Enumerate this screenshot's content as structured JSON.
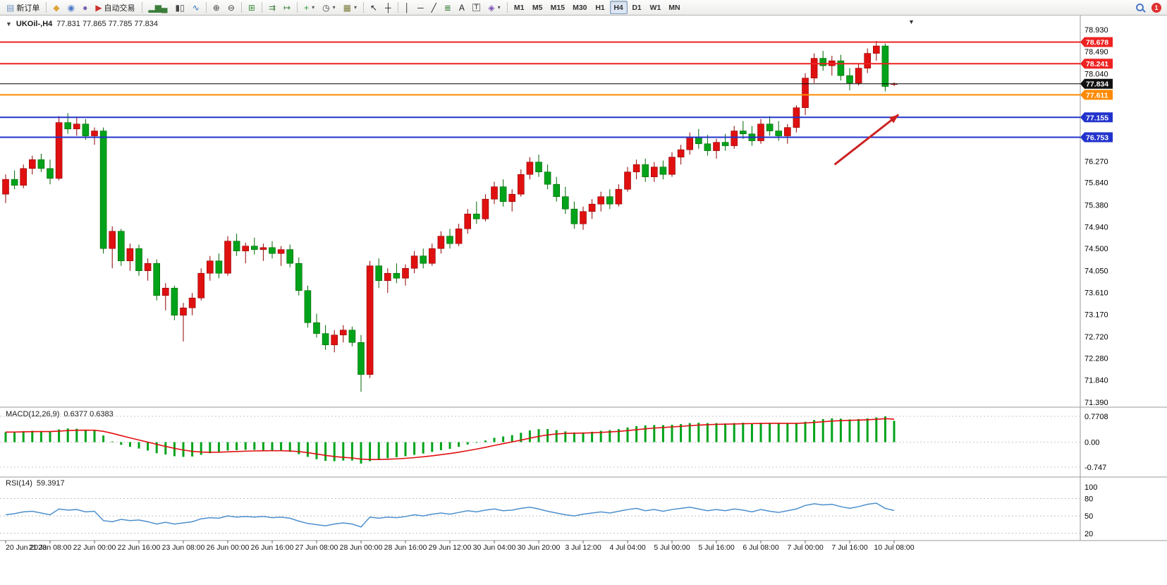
{
  "icons": {
    "caret_down": "▼",
    "caret_small": "▾"
  },
  "toolbar": {
    "notification_count": "1",
    "active_timeframe": "H4",
    "timeframes": [
      "M1",
      "M5",
      "M15",
      "M30",
      "H1",
      "H4",
      "D1",
      "W1",
      "MN"
    ],
    "buttons": [
      {
        "name": "new-order-button",
        "icon": "new-order-icon",
        "glyph": "▤",
        "color": "#6f8fbf",
        "label": "新订单"
      },
      {
        "sep": true
      },
      {
        "name": "market-watch-button",
        "icon": "market-watch-icon",
        "glyph": "◆",
        "color": "#e0a33b"
      },
      {
        "name": "navigator-button",
        "icon": "navigator-icon",
        "glyph": "◉",
        "color": "#4d79c9"
      },
      {
        "name": "terminal-button",
        "icon": "terminal-icon",
        "glyph": "●",
        "color": "#7a5fb0"
      },
      {
        "name": "autotrading-button",
        "icon": "autotrading-icon",
        "glyph": "▶",
        "color": "#cc3333",
        "label": "自动交易"
      },
      {
        "sep": true
      },
      {
        "name": "bar-chart-button",
        "icon": "bar-chart-icon",
        "glyph": "▂▆▄",
        "color": "#3a7d3a"
      },
      {
        "name": "candlestick-chart-button",
        "icon": "candlestick-chart-icon",
        "glyph": "▮▯",
        "color": "#444444"
      },
      {
        "name": "line-chart-button",
        "icon": "line-chart-icon",
        "glyph": "∿",
        "color": "#2a6fbd"
      },
      {
        "sep": true
      },
      {
        "name": "zoom-in-button",
        "icon": "zoom-in-icon",
        "glyph": "⊕",
        "color": "#444444"
      },
      {
        "name": "zoom-out-button",
        "icon": "zoom-out-icon",
        "glyph": "⊖",
        "color": "#444444"
      },
      {
        "sep": true
      },
      {
        "name": "tile-windows-button",
        "icon": "tile-windows-icon",
        "glyph": "⊞",
        "color": "#3a8d3a"
      },
      {
        "sep": true
      },
      {
        "name": "auto-scroll-button",
        "icon": "auto-scroll-icon",
        "glyph": "⇉",
        "color": "#3a7d3a"
      },
      {
        "name": "chart-shift-button",
        "icon": "chart-shift-icon",
        "glyph": "↦",
        "color": "#3a7d3a"
      },
      {
        "sep": true
      },
      {
        "name": "indicators-button",
        "icon": "indicators-icon",
        "glyph": "+",
        "color": "#2a9d2a",
        "dropdown": true
      },
      {
        "name": "periods-button",
        "icon": "periods-icon",
        "glyph": "◷",
        "color": "#444444",
        "dropdown": true
      },
      {
        "name": "templates-button",
        "icon": "templates-icon",
        "glyph": "▦",
        "color": "#7a7a3a",
        "dropdown": true
      },
      {
        "sep": true
      },
      {
        "name": "cursor-button",
        "icon": "cursor-icon",
        "glyph": "↖",
        "color": "#222222"
      },
      {
        "name": "crosshair-button",
        "icon": "crosshair-icon",
        "glyph": "┼",
        "color": "#222222"
      },
      {
        "sep": true
      },
      {
        "name": "vertical-line-button",
        "icon": "vertical-line-icon",
        "glyph": "│",
        "color": "#222222"
      },
      {
        "name": "horizontal-line-button",
        "icon": "horizontal-line-icon",
        "glyph": "─",
        "color": "#222222"
      },
      {
        "name": "trendline-button",
        "icon": "trendline-icon",
        "glyph": "╱",
        "color": "#222222"
      },
      {
        "name": "fibonacci-button",
        "icon": "fibonacci-icon",
        "glyph": "≣",
        "color": "#3a7d3a"
      },
      {
        "name": "text-button",
        "icon": "text-icon",
        "glyph": "A",
        "color": "#222222"
      },
      {
        "name": "label-button",
        "icon": "label-icon",
        "glyph": "T",
        "color": "#222222",
        "boxed": true
      },
      {
        "name": "arrows-button",
        "icon": "arrows-icon",
        "glyph": "◈",
        "color": "#7a4fb0",
        "dropdown": true
      },
      {
        "sep": true
      }
    ]
  },
  "chart": {
    "title_symbol": "UKOil-,H4",
    "title_ohlc": "77.831 77.865 77.785 77.834"
  },
  "indicators": {
    "macd": {
      "label": "MACD(12,26,9)",
      "values": "0.6377 0.6383",
      "scale_labels": [
        "0.7708",
        "0.00",
        "-0.747"
      ]
    },
    "rsi": {
      "label": "RSI(14)",
      "value": "59.3917",
      "scale_labels": [
        "100",
        "80",
        "50",
        "20"
      ]
    }
  },
  "chart_data": {
    "type": "candlestick",
    "symbol": "UKOil-",
    "timeframe": "H4",
    "colors": {
      "up": "#e01010",
      "down": "#00a31a",
      "up_border": "#8f0000",
      "down_border": "#006600",
      "macd_hist": "#00a31a",
      "macd_signal": "#e01010",
      "rsi_line": "#4d8fcc"
    },
    "price_axis_labels": [
      "78.930",
      "78.490",
      "78.040",
      "76.270",
      "75.840",
      "75.380",
      "74.940",
      "74.500",
      "74.050",
      "73.610",
      "73.170",
      "72.720",
      "72.280",
      "71.840",
      "71.390"
    ],
    "price_tags": [
      {
        "value": "78.678",
        "color": "#ee2222"
      },
      {
        "value": "78.241",
        "color": "#ee2222"
      },
      {
        "value": "77.834",
        "color": "#111111"
      },
      {
        "value": "77.611",
        "color": "#ff8a00"
      },
      {
        "value": "77.155",
        "color": "#2233cc"
      },
      {
        "value": "76.753",
        "color": "#2233cc"
      }
    ],
    "horizontal_lines": [
      {
        "name": "resistance-line-1",
        "price": 78.678,
        "color": "#ee2222",
        "width": 2
      },
      {
        "name": "resistance-line-2",
        "price": 78.241,
        "color": "#ee2222",
        "width": 2
      },
      {
        "name": "bid-price-line",
        "price": 77.834,
        "color": "#000000",
        "width": 1
      },
      {
        "name": "pivot-line",
        "price": 77.611,
        "color": "#ff8a00",
        "width": 2
      },
      {
        "name": "support-line-1",
        "price": 77.155,
        "color": "#2233cc",
        "width": 2
      },
      {
        "name": "support-line-2",
        "price": 76.753,
        "color": "#2233cc",
        "width": 2
      }
    ],
    "arrow": {
      "from_bar": 93.3,
      "from_price": 76.2,
      "to_bar": 100.5,
      "to_price": 77.21,
      "color": "#cc2222"
    },
    "time_labels": [
      "20 Jun 2023",
      "21 Jun 08:00",
      "22 Jun 00:00",
      "22 Jun 16:00",
      "23 Jun 08:00",
      "26 Jun 00:00",
      "26 Jun 16:00",
      "27 Jun 08:00",
      "28 Jun 00:00",
      "28 Jun 16:00",
      "29 Jun 12:00",
      "30 Jun 04:00",
      "30 Jun 20:00",
      "3 Jul 12:00",
      "4 Jul 04:00",
      "5 Jul 00:00",
      "5 Jul 16:00",
      "6 Jul 08:00",
      "7 Jul 00:00",
      "7 Jul 16:00",
      "10 Jul 08:00"
    ],
    "label_every_n_bars": 5,
    "price_scale": {
      "top_value": 78.93,
      "bottom_value": 71.39
    },
    "macd_scale": {
      "max": 0.7708,
      "min": -0.747
    },
    "rsi_scale": {
      "max": 100,
      "min": 10
    },
    "rsi_levels": [
      80,
      50,
      20
    ],
    "candles_ohlc": [
      [
        75.6,
        76.0,
        75.42,
        75.9
      ],
      [
        75.9,
        76.08,
        75.7,
        75.78
      ],
      [
        75.78,
        76.2,
        75.72,
        76.12
      ],
      [
        76.12,
        76.38,
        76.0,
        76.3
      ],
      [
        76.3,
        76.42,
        76.05,
        76.12
      ],
      [
        76.12,
        76.3,
        75.8,
        75.92
      ],
      [
        75.92,
        77.18,
        75.88,
        77.05
      ],
      [
        77.05,
        77.24,
        76.82,
        76.92
      ],
      [
        76.92,
        77.15,
        76.78,
        77.02
      ],
      [
        77.02,
        77.12,
        76.7,
        76.78
      ],
      [
        76.78,
        76.95,
        76.6,
        76.88
      ],
      [
        76.88,
        76.95,
        74.4,
        74.5
      ],
      [
        74.5,
        74.95,
        74.1,
        74.85
      ],
      [
        74.85,
        74.9,
        74.15,
        74.25
      ],
      [
        74.25,
        74.6,
        74.05,
        74.5
      ],
      [
        74.5,
        74.58,
        73.95,
        74.05
      ],
      [
        74.05,
        74.3,
        73.85,
        74.2
      ],
      [
        74.2,
        74.28,
        73.45,
        73.55
      ],
      [
        73.55,
        73.8,
        73.25,
        73.7
      ],
      [
        73.7,
        73.75,
        73.05,
        73.15
      ],
      [
        73.15,
        73.4,
        72.62,
        73.3
      ],
      [
        73.3,
        73.6,
        73.15,
        73.5
      ],
      [
        73.5,
        74.1,
        73.45,
        74.0
      ],
      [
        74.0,
        74.35,
        73.85,
        74.25
      ],
      [
        74.25,
        74.4,
        73.9,
        74.0
      ],
      [
        74.0,
        74.75,
        73.95,
        74.65
      ],
      [
        74.65,
        74.8,
        74.35,
        74.45
      ],
      [
        74.45,
        74.62,
        74.2,
        74.55
      ],
      [
        74.55,
        74.72,
        74.38,
        74.48
      ],
      [
        74.48,
        74.6,
        74.25,
        74.52
      ],
      [
        74.52,
        74.65,
        74.3,
        74.4
      ],
      [
        74.4,
        74.55,
        74.15,
        74.48
      ],
      [
        74.48,
        74.58,
        74.12,
        74.2
      ],
      [
        74.2,
        74.32,
        73.55,
        73.65
      ],
      [
        73.65,
        73.75,
        72.9,
        73.0
      ],
      [
        73.0,
        73.18,
        72.7,
        72.78
      ],
      [
        72.78,
        72.95,
        72.45,
        72.55
      ],
      [
        72.55,
        72.85,
        72.4,
        72.75
      ],
      [
        72.75,
        72.95,
        72.6,
        72.85
      ],
      [
        72.85,
        72.92,
        72.52,
        72.6
      ],
      [
        72.6,
        72.75,
        71.6,
        71.95
      ],
      [
        71.95,
        74.25,
        71.88,
        74.15
      ],
      [
        74.15,
        74.3,
        73.7,
        73.85
      ],
      [
        73.85,
        74.1,
        73.6,
        74.0
      ],
      [
        74.0,
        74.2,
        73.8,
        73.9
      ],
      [
        73.9,
        74.18,
        73.75,
        74.1
      ],
      [
        74.1,
        74.45,
        74.0,
        74.35
      ],
      [
        74.35,
        74.5,
        74.1,
        74.2
      ],
      [
        74.2,
        74.6,
        74.15,
        74.5
      ],
      [
        74.5,
        74.85,
        74.4,
        74.75
      ],
      [
        74.75,
        74.9,
        74.5,
        74.6
      ],
      [
        74.6,
        75.0,
        74.55,
        74.9
      ],
      [
        74.9,
        75.3,
        74.8,
        75.2
      ],
      [
        75.2,
        75.45,
        75.0,
        75.1
      ],
      [
        75.1,
        75.6,
        75.05,
        75.5
      ],
      [
        75.5,
        75.85,
        75.4,
        75.75
      ],
      [
        75.75,
        75.9,
        75.35,
        75.45
      ],
      [
        75.45,
        75.7,
        75.25,
        75.6
      ],
      [
        75.6,
        76.1,
        75.55,
        76.0
      ],
      [
        76.0,
        76.35,
        75.9,
        76.25
      ],
      [
        76.25,
        76.4,
        75.95,
        76.05
      ],
      [
        76.05,
        76.2,
        75.7,
        75.8
      ],
      [
        75.8,
        75.95,
        75.45,
        75.55
      ],
      [
        75.55,
        75.75,
        75.2,
        75.3
      ],
      [
        75.3,
        75.45,
        74.9,
        75.0
      ],
      [
        75.0,
        75.35,
        74.88,
        75.25
      ],
      [
        75.25,
        75.5,
        75.1,
        75.4
      ],
      [
        75.4,
        75.65,
        75.25,
        75.55
      ],
      [
        75.55,
        75.7,
        75.3,
        75.4
      ],
      [
        75.4,
        75.8,
        75.35,
        75.7
      ],
      [
        75.7,
        76.15,
        75.65,
        76.05
      ],
      [
        76.05,
        76.3,
        75.9,
        76.2
      ],
      [
        76.2,
        76.32,
        75.85,
        75.95
      ],
      [
        75.95,
        76.25,
        75.85,
        76.15
      ],
      [
        76.15,
        76.28,
        75.9,
        76.0
      ],
      [
        76.0,
        76.45,
        75.95,
        76.35
      ],
      [
        76.35,
        76.6,
        76.2,
        76.5
      ],
      [
        76.5,
        76.85,
        76.4,
        76.75
      ],
      [
        76.75,
        76.92,
        76.52,
        76.62
      ],
      [
        76.62,
        76.8,
        76.38,
        76.48
      ],
      [
        76.48,
        76.72,
        76.32,
        76.65
      ],
      [
        76.65,
        76.82,
        76.48,
        76.58
      ],
      [
        76.58,
        76.98,
        76.52,
        76.88
      ],
      [
        76.88,
        77.08,
        76.72,
        76.82
      ],
      [
        76.82,
        76.98,
        76.58,
        76.68
      ],
      [
        76.68,
        77.12,
        76.62,
        77.02
      ],
      [
        77.02,
        77.18,
        76.78,
        76.88
      ],
      [
        76.88,
        77.08,
        76.68,
        76.78
      ],
      [
        76.78,
        77.02,
        76.62,
        76.95
      ],
      [
        76.95,
        77.4,
        76.85,
        77.35
      ],
      [
        77.35,
        78.05,
        77.2,
        77.95
      ],
      [
        77.95,
        78.45,
        77.85,
        78.35
      ],
      [
        78.35,
        78.5,
        78.1,
        78.2
      ],
      [
        78.2,
        78.4,
        78.0,
        78.3
      ],
      [
        78.3,
        78.42,
        77.9,
        78.0
      ],
      [
        78.0,
        78.15,
        77.7,
        77.85
      ],
      [
        77.85,
        78.25,
        77.8,
        78.15
      ],
      [
        78.15,
        78.55,
        78.05,
        78.45
      ],
      [
        78.45,
        78.7,
        78.3,
        78.6
      ],
      [
        78.6,
        78.65,
        77.68,
        77.78
      ],
      [
        77.831,
        77.865,
        77.785,
        77.834
      ]
    ],
    "macd_histogram": [
      0.3,
      0.31,
      0.33,
      0.34,
      0.33,
      0.31,
      0.38,
      0.41,
      0.4,
      0.37,
      0.34,
      0.2,
      0.02,
      -0.08,
      -0.14,
      -0.19,
      -0.25,
      -0.33,
      -0.37,
      -0.42,
      -0.44,
      -0.43,
      -0.38,
      -0.33,
      -0.29,
      -0.25,
      -0.24,
      -0.23,
      -0.23,
      -0.24,
      -0.25,
      -0.26,
      -0.29,
      -0.36,
      -0.44,
      -0.51,
      -0.56,
      -0.57,
      -0.55,
      -0.55,
      -0.64,
      -0.57,
      -0.52,
      -0.48,
      -0.45,
      -0.42,
      -0.38,
      -0.34,
      -0.29,
      -0.24,
      -0.2,
      -0.14,
      -0.07,
      -0.02,
      0.05,
      0.13,
      0.17,
      0.21,
      0.28,
      0.35,
      0.39,
      0.39,
      0.36,
      0.32,
      0.29,
      0.29,
      0.31,
      0.34,
      0.36,
      0.39,
      0.44,
      0.48,
      0.5,
      0.51,
      0.51,
      0.52,
      0.54,
      0.57,
      0.58,
      0.57,
      0.57,
      0.56,
      0.57,
      0.58,
      0.57,
      0.58,
      0.58,
      0.56,
      0.55,
      0.57,
      0.61,
      0.66,
      0.69,
      0.71,
      0.7,
      0.68,
      0.69,
      0.71,
      0.74,
      0.77,
      0.6377
    ],
    "rsi_values": [
      52,
      54,
      57,
      58,
      55,
      52,
      62,
      60,
      61,
      57,
      58,
      42,
      40,
      44,
      42,
      43,
      40,
      36,
      39,
      36,
      38,
      40,
      45,
      47,
      46,
      50,
      48,
      49,
      48,
      49,
      47,
      48,
      46,
      41,
      37,
      35,
      33,
      36,
      38,
      36,
      31,
      48,
      46,
      48,
      47,
      49,
      52,
      50,
      53,
      55,
      53,
      56,
      59,
      57,
      60,
      62,
      59,
      60,
      63,
      65,
      62,
      58,
      55,
      52,
      50,
      53,
      55,
      57,
      55,
      58,
      61,
      63,
      59,
      61,
      58,
      61,
      63,
      65,
      62,
      59,
      61,
      59,
      62,
      60,
      57,
      61,
      58,
      56,
      59,
      62,
      68,
      71,
      69,
      70,
      66,
      63,
      66,
      70,
      72,
      63,
      59.39
    ]
  }
}
